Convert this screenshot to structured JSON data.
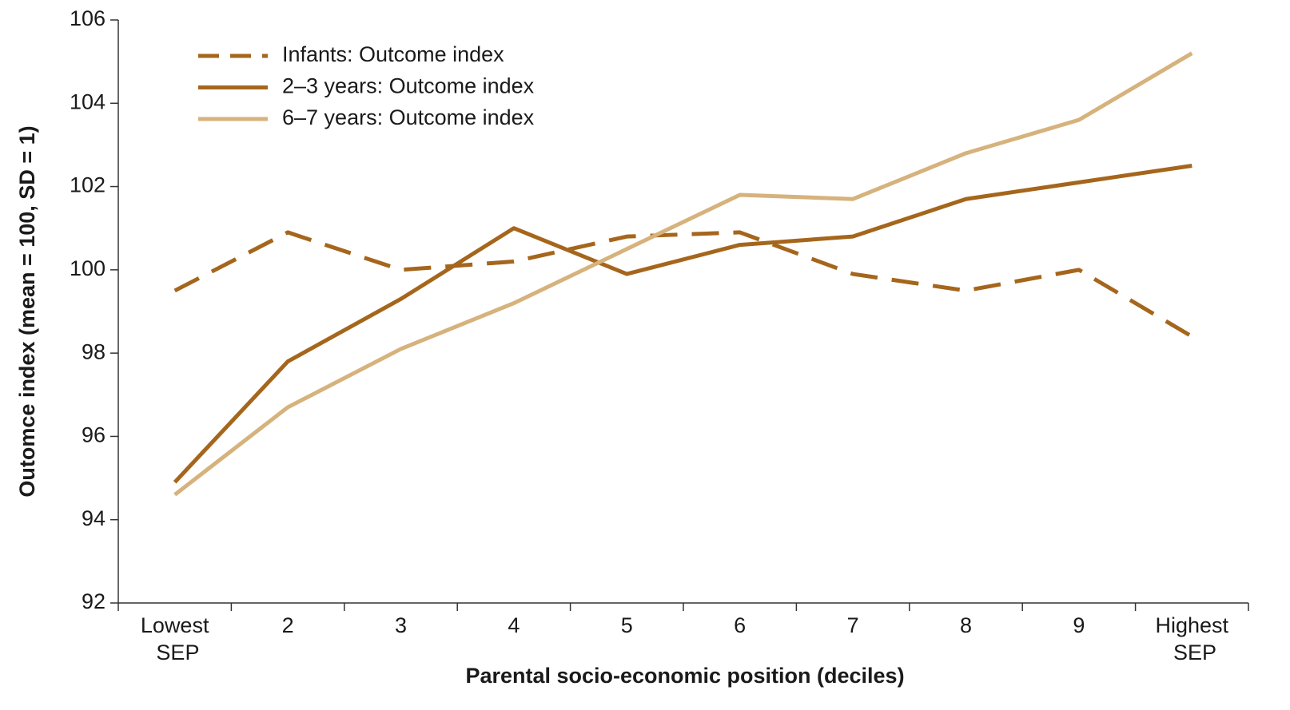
{
  "chart_data": {
    "type": "line",
    "x_label": "Parental socio-economic position (deciles)",
    "y_label": "Outomce index (mean = 100, SD = 1)",
    "categories": [
      "Lowest SEP",
      "2",
      "3",
      "4",
      "5",
      "6",
      "7",
      "8",
      "9",
      "Highest SEP"
    ],
    "series": [
      {
        "name": "Infants: Outcome index",
        "color": "#a5661c",
        "linestyle": "dashed",
        "values": [
          99.5,
          100.9,
          100.0,
          100.2,
          100.8,
          100.9,
          99.9,
          99.5,
          100.0,
          98.4
        ]
      },
      {
        "name": "2–3 years: Outcome index",
        "color": "#a5661c",
        "linestyle": "solid",
        "values": [
          94.9,
          97.8,
          99.3,
          101.0,
          99.9,
          100.6,
          100.8,
          101.7,
          102.1,
          102.5
        ]
      },
      {
        "name": "6–7 years: Outcome index",
        "color": "#d6b27c",
        "linestyle": "solid",
        "values": [
          94.6,
          96.7,
          98.1,
          99.2,
          100.5,
          101.8,
          101.7,
          102.8,
          103.6,
          105.2
        ]
      }
    ],
    "ylim": [
      92,
      106
    ],
    "yticks": [
      92,
      94,
      96,
      98,
      100,
      102,
      104,
      106
    ],
    "grid": false,
    "legend": "upper left"
  }
}
